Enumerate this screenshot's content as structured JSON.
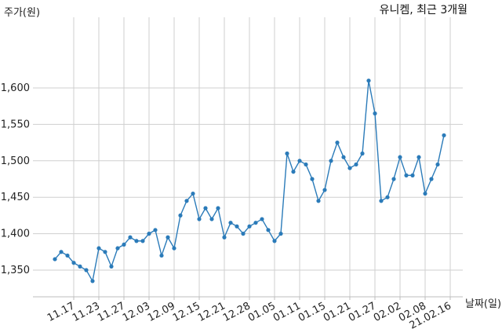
{
  "chart_data": {
    "type": "line",
    "title": "유니켐, 최근 3개월",
    "xlabel": "날짜(일)",
    "ylabel": "주가(원)",
    "ylim": [
      1320,
      1625
    ],
    "yticks": [
      1350,
      1400,
      1450,
      1500,
      1550,
      1600
    ],
    "ytick_labels": [
      "1,350",
      "1,400",
      "1,450",
      "1,500",
      "1,550",
      "1,600"
    ],
    "xtick_labels": [
      "11.17",
      "11.23",
      "11.27",
      "12.03",
      "12.09",
      "12.15",
      "12.21",
      "12.28",
      "01.05",
      "01.11",
      "01.15",
      "01.21",
      "01.27",
      "02.02",
      "02.08",
      "21.02.16"
    ],
    "xtick_indices": [
      3,
      7,
      11,
      15,
      19,
      23,
      27,
      31,
      35,
      39,
      43,
      47,
      51,
      55,
      59,
      63
    ],
    "grid": true,
    "color": "#2b7bb9",
    "series": [
      {
        "values": [
          1365,
          1375,
          1370,
          1360,
          1355,
          1350,
          1335,
          1380,
          1375,
          1355,
          1380,
          1385,
          1395,
          1390,
          1390,
          1400,
          1405,
          1370,
          1395,
          1380,
          1425,
          1445,
          1455,
          1420,
          1435,
          1420,
          1435,
          1395,
          1415,
          1410,
          1400,
          1410,
          1415,
          1420,
          1405,
          1390,
          1400,
          1510,
          1485,
          1500,
          1495,
          1475,
          1445,
          1460,
          1500,
          1525,
          1505,
          1490,
          1495,
          1510,
          1610,
          1565,
          1445,
          1450,
          1475,
          1505,
          1480,
          1480,
          1505,
          1455,
          1475,
          1495,
          1535
        ]
      }
    ]
  }
}
